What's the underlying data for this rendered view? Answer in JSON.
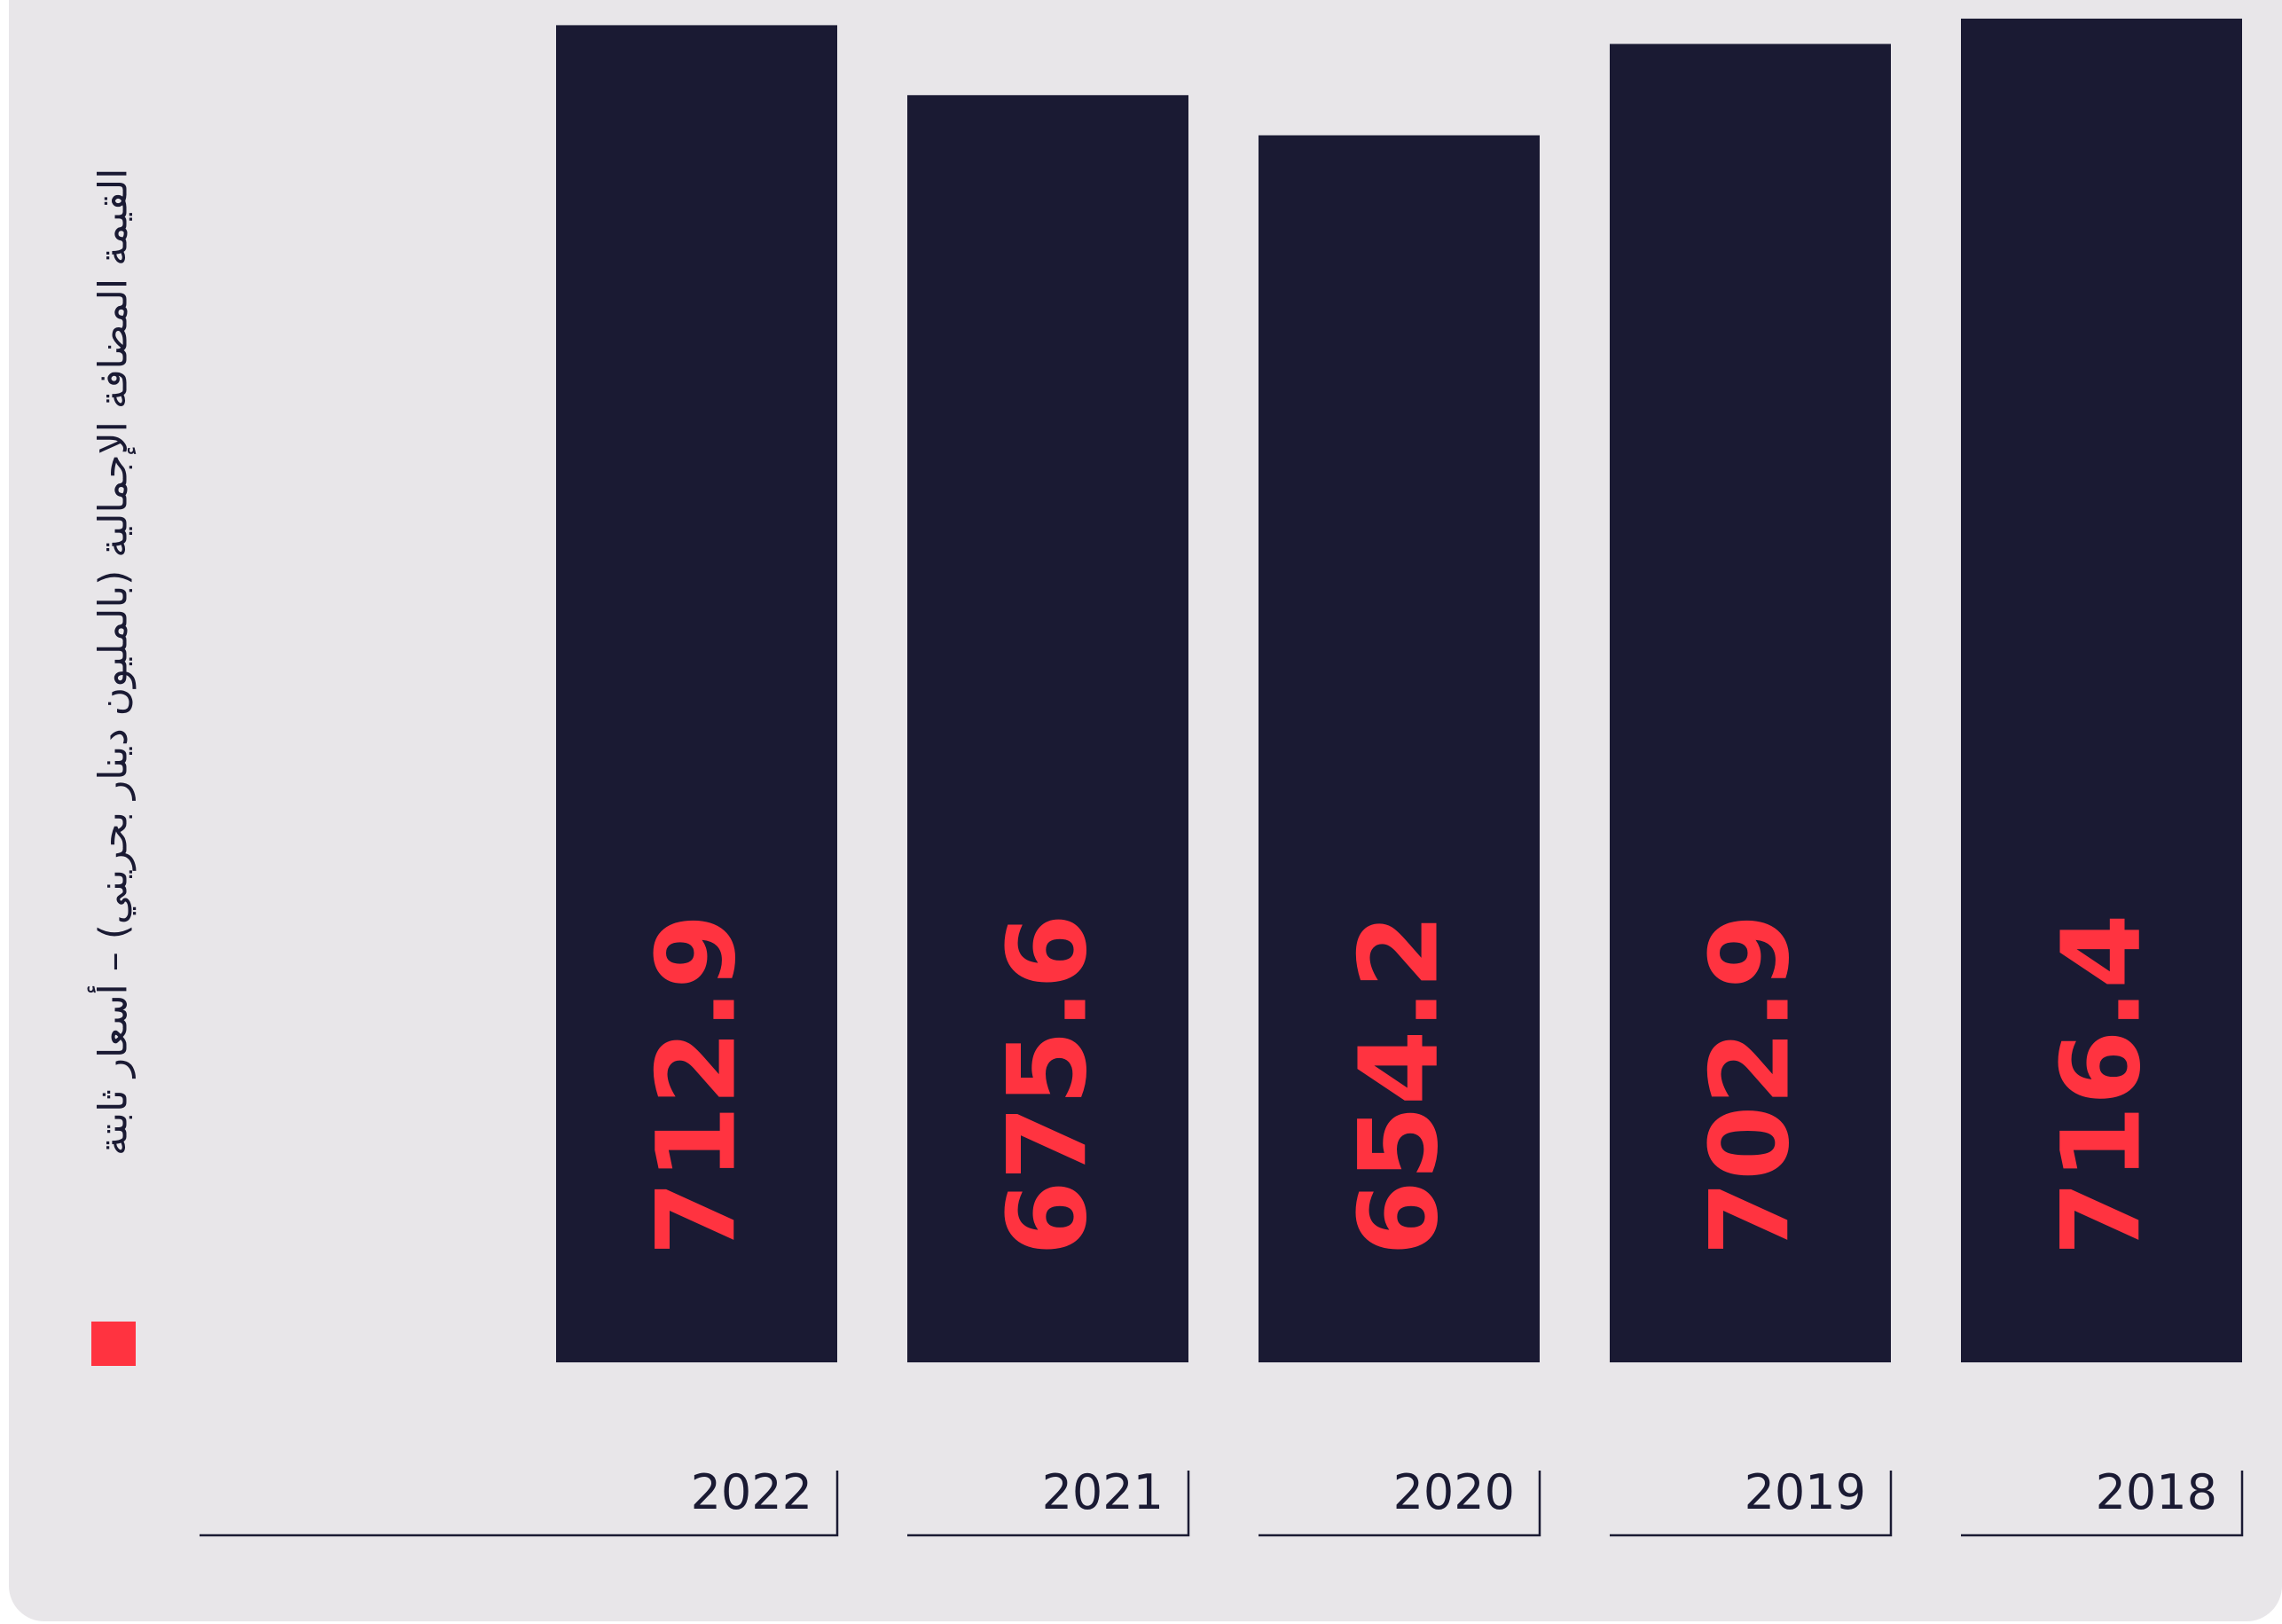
{
  "chart_data": {
    "type": "bar",
    "categories": [
      "2018",
      "2019",
      "2020",
      "2021",
      "2022"
    ],
    "series": [
      {
        "name": "القيمة المضافة الإجمالية (بالمليون دينار بحريني) – أسعار ثابتة",
        "values": [
          716.4,
          702.9,
          654.2,
          675.6,
          712.9
        ]
      }
    ],
    "value_labels": [
      "716.4",
      "702.9",
      "654.2",
      "675.6",
      "712.9"
    ],
    "category_order": "right-to-left",
    "title": "",
    "xlabel": "",
    "ylabel": "",
    "grid": false,
    "legend_position": "left",
    "colors": {
      "bar": "#1a1a33",
      "value_label": "#ff3340",
      "legend_swatch": "#ff3340",
      "background": "#e8e6e9"
    }
  }
}
